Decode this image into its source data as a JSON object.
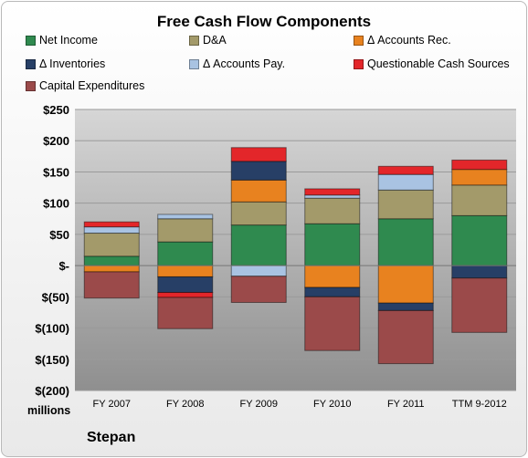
{
  "chart_data": {
    "type": "bar",
    "stacked": true,
    "title": "Free Cash Flow Components",
    "ylabel": "millions",
    "ylim": [
      -200,
      250
    ],
    "yticks": [
      250,
      200,
      150,
      100,
      50,
      0,
      -50,
      -100,
      -150,
      -200
    ],
    "ytick_labels": [
      "$250",
      "$200",
      "$150",
      "$100",
      "$50",
      "$-",
      "$(50)",
      "$(100)",
      "$(150)",
      "$(200)"
    ],
    "grid": true,
    "legend_position": "top",
    "categories": [
      "FY 2007",
      "FY 2008",
      "FY 2009",
      "FY 2010",
      "FY 2011",
      "TTM 9-2012"
    ],
    "series": [
      {
        "name": "Net Income",
        "color": "#2f8a4f",
        "values": [
          15,
          38,
          65,
          67,
          75,
          80
        ]
      },
      {
        "name": "D&A",
        "color": "#a39a6a",
        "values": [
          37,
          37,
          37,
          41,
          46,
          49
        ]
      },
      {
        "name": "Δ Accounts Rec.",
        "color": "#e8821f",
        "values": [
          -10,
          -18,
          35,
          -35,
          -60,
          25
        ]
      },
      {
        "name": "Δ Inventories",
        "color": "#273f66",
        "values": [
          0,
          -25,
          30,
          -15,
          -12,
          -20
        ]
      },
      {
        "name": "Δ Accounts Pay.",
        "color": "#a9c3e2",
        "values": [
          10,
          7,
          -17,
          5,
          25,
          0
        ]
      },
      {
        "name": "Questionable Cash Sources",
        "color": "#e3262a",
        "values": [
          8,
          -8,
          22,
          10,
          13,
          15
        ]
      },
      {
        "name": "Capital Expenditures",
        "color": "#9b4a4a",
        "values": [
          -42,
          -50,
          -42,
          -86,
          -85,
          -87
        ]
      }
    ]
  },
  "brand": "Stepan"
}
